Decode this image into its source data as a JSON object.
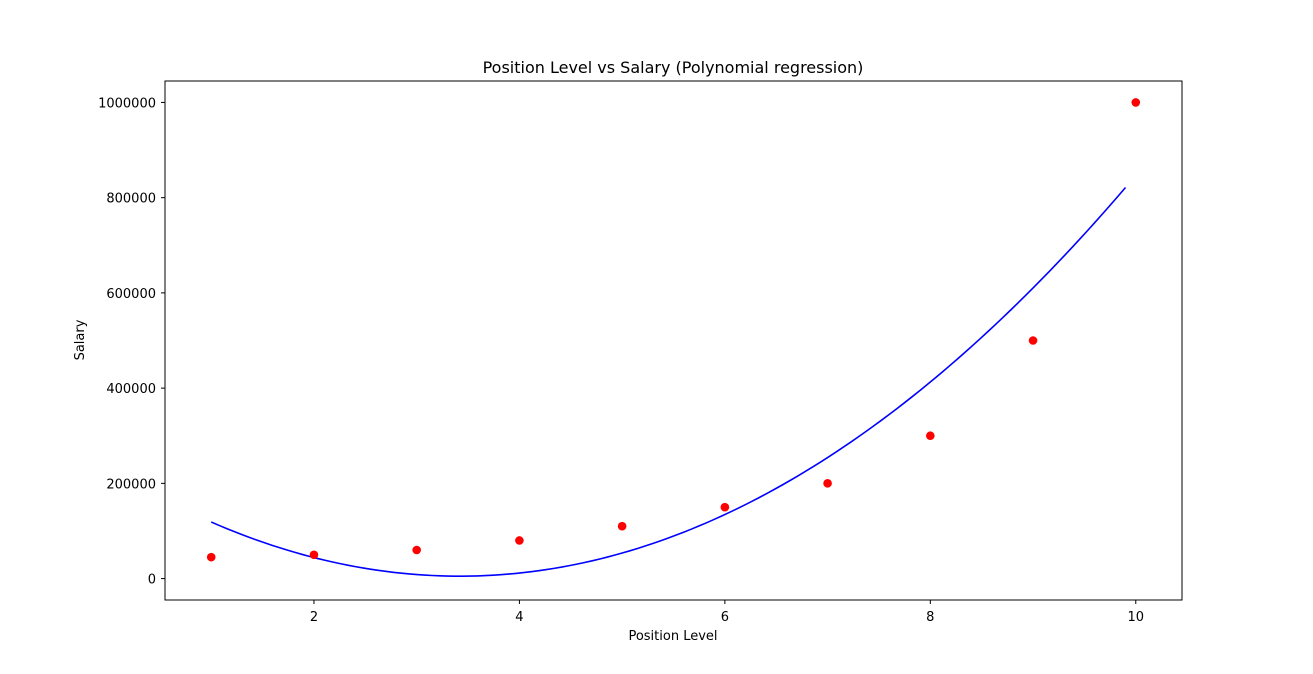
{
  "chart_data": {
    "type": "scatter",
    "title": "Position Level vs Salary (Polynomial regression)",
    "xlabel": "Position Level",
    "ylabel": "Salary",
    "xlim": [
      0.55,
      10.45
    ],
    "ylim": [
      -45000,
      1045000
    ],
    "x_ticks": [
      2,
      4,
      6,
      8,
      10
    ],
    "y_ticks": [
      0,
      200000,
      400000,
      600000,
      800000,
      1000000
    ],
    "x_tick_labels": [
      "2",
      "4",
      "6",
      "8",
      "10"
    ],
    "y_tick_labels": [
      "0",
      "200000",
      "400000",
      "600000",
      "800000",
      "1000000"
    ],
    "grid": false,
    "series": [
      {
        "kind": "scatter",
        "color": "#ff0000",
        "x": [
          1,
          2,
          3,
          4,
          5,
          6,
          7,
          8,
          9,
          10
        ],
        "y": [
          45000,
          50000,
          60000,
          80000,
          110000,
          150000,
          200000,
          300000,
          500000,
          1000000
        ]
      },
      {
        "kind": "line",
        "color": "#0000ff",
        "x_range": [
          1.0,
          9.9
        ],
        "polynomial_coefficients": [
          232166.67,
          -132871.21,
          19431.82
        ]
      }
    ]
  }
}
